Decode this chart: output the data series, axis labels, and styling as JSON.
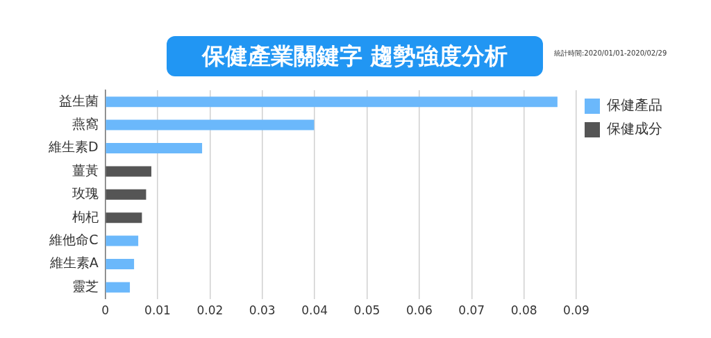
{
  "chart_data": {
    "type": "bar",
    "orientation": "horizontal",
    "title": "保健產業關鍵字 趨勢強度分析",
    "annotations": [
      "統計時間:2020/01/01-2020/02/29"
    ],
    "categories": [
      "益生菌",
      "燕窩",
      "維生素D",
      "薑黃",
      "玫瑰",
      "枸杞",
      "維他命C",
      "維生素A",
      "靈芝"
    ],
    "series": [
      {
        "name": "保健產品",
        "color": "#6bb8fb",
        "values": [
          0.0864,
          0.0399,
          0.0185,
          null,
          null,
          null,
          0.0063,
          0.0055,
          0.0047
        ]
      },
      {
        "name": "保健成分",
        "color": "#555555",
        "values": [
          null,
          null,
          null,
          0.0088,
          0.0078,
          0.007,
          null,
          null,
          null
        ]
      }
    ],
    "xlim": [
      0,
      0.09
    ],
    "xticks": [
      0,
      0.01,
      0.02,
      0.03,
      0.04,
      0.05,
      0.06,
      0.07,
      0.08,
      0.09
    ],
    "grid": "x",
    "legend": "top right"
  }
}
